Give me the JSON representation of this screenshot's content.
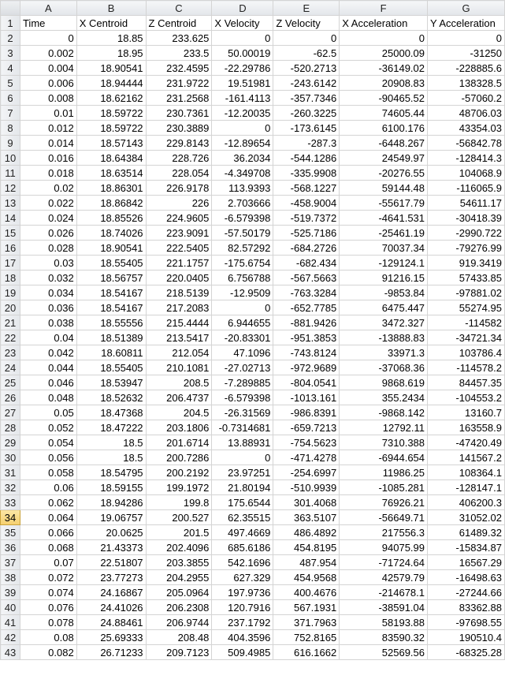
{
  "columns": [
    "A",
    "B",
    "C",
    "D",
    "E",
    "F",
    "G"
  ],
  "active_row": "34",
  "headers": [
    "Time",
    "X Centroid",
    "Z Centroid",
    "X Velocity",
    "Z Velocity",
    "X Acceleration",
    "Y Acceleration"
  ],
  "rows": [
    [
      "2",
      "0",
      "18.85",
      "233.625",
      "0",
      "0",
      "0",
      "0"
    ],
    [
      "3",
      "0.002",
      "18.95",
      "233.5",
      "50.00019",
      "-62.5",
      "25000.09",
      "-31250"
    ],
    [
      "4",
      "0.004",
      "18.90541",
      "232.4595",
      "-22.29786",
      "-520.2713",
      "-36149.02",
      "-228885.6"
    ],
    [
      "5",
      "0.006",
      "18.94444",
      "231.9722",
      "19.51981",
      "-243.6142",
      "20908.83",
      "138328.5"
    ],
    [
      "6",
      "0.008",
      "18.62162",
      "231.2568",
      "-161.4113",
      "-357.7346",
      "-90465.52",
      "-57060.2"
    ],
    [
      "7",
      "0.01",
      "18.59722",
      "230.7361",
      "-12.20035",
      "-260.3225",
      "74605.44",
      "48706.03"
    ],
    [
      "8",
      "0.012",
      "18.59722",
      "230.3889",
      "0",
      "-173.6145",
      "6100.176",
      "43354.03"
    ],
    [
      "9",
      "0.014",
      "18.57143",
      "229.8143",
      "-12.89654",
      "-287.3",
      "-6448.267",
      "-56842.78"
    ],
    [
      "10",
      "0.016",
      "18.64384",
      "228.726",
      "36.2034",
      "-544.1286",
      "24549.97",
      "-128414.3"
    ],
    [
      "11",
      "0.018",
      "18.63514",
      "228.054",
      "-4.349708",
      "-335.9908",
      "-20276.55",
      "104068.9"
    ],
    [
      "12",
      "0.02",
      "18.86301",
      "226.9178",
      "113.9393",
      "-568.1227",
      "59144.48",
      "-116065.9"
    ],
    [
      "13",
      "0.022",
      "18.86842",
      "226",
      "2.703666",
      "-458.9004",
      "-55617.79",
      "54611.17"
    ],
    [
      "14",
      "0.024",
      "18.85526",
      "224.9605",
      "-6.579398",
      "-519.7372",
      "-4641.531",
      "-30418.39"
    ],
    [
      "15",
      "0.026",
      "18.74026",
      "223.9091",
      "-57.50179",
      "-525.7186",
      "-25461.19",
      "-2990.722"
    ],
    [
      "16",
      "0.028",
      "18.90541",
      "222.5405",
      "82.57292",
      "-684.2726",
      "70037.34",
      "-79276.99"
    ],
    [
      "17",
      "0.03",
      "18.55405",
      "221.1757",
      "-175.6754",
      "-682.434",
      "-129124.1",
      "919.3419"
    ],
    [
      "18",
      "0.032",
      "18.56757",
      "220.0405",
      "6.756788",
      "-567.5663",
      "91216.15",
      "57433.85"
    ],
    [
      "19",
      "0.034",
      "18.54167",
      "218.5139",
      "-12.9509",
      "-763.3284",
      "-9853.84",
      "-97881.02"
    ],
    [
      "20",
      "0.036",
      "18.54167",
      "217.2083",
      "0",
      "-652.7785",
      "6475.447",
      "55274.95"
    ],
    [
      "21",
      "0.038",
      "18.55556",
      "215.4444",
      "6.944655",
      "-881.9426",
      "3472.327",
      "-114582"
    ],
    [
      "22",
      "0.04",
      "18.51389",
      "213.5417",
      "-20.83301",
      "-951.3853",
      "-13888.83",
      "-34721.34"
    ],
    [
      "23",
      "0.042",
      "18.60811",
      "212.054",
      "47.1096",
      "-743.8124",
      "33971.3",
      "103786.4"
    ],
    [
      "24",
      "0.044",
      "18.55405",
      "210.1081",
      "-27.02713",
      "-972.9689",
      "-37068.36",
      "-114578.2"
    ],
    [
      "25",
      "0.046",
      "18.53947",
      "208.5",
      "-7.289885",
      "-804.0541",
      "9868.619",
      "84457.35"
    ],
    [
      "26",
      "0.048",
      "18.52632",
      "206.4737",
      "-6.579398",
      "-1013.161",
      "355.2434",
      "-104553.2"
    ],
    [
      "27",
      "0.05",
      "18.47368",
      "204.5",
      "-26.31569",
      "-986.8391",
      "-9868.142",
      "13160.7"
    ],
    [
      "28",
      "0.052",
      "18.47222",
      "203.1806",
      "-0.7314681",
      "-659.7213",
      "12792.11",
      "163558.9"
    ],
    [
      "29",
      "0.054",
      "18.5",
      "201.6714",
      "13.88931",
      "-754.5623",
      "7310.388",
      "-47420.49"
    ],
    [
      "30",
      "0.056",
      "18.5",
      "200.7286",
      "0",
      "-471.4278",
      "-6944.654",
      "141567.2"
    ],
    [
      "31",
      "0.058",
      "18.54795",
      "200.2192",
      "23.97251",
      "-254.6997",
      "11986.25",
      "108364.1"
    ],
    [
      "32",
      "0.06",
      "18.59155",
      "199.1972",
      "21.80194",
      "-510.9939",
      "-1085.281",
      "-128147.1"
    ],
    [
      "33",
      "0.062",
      "18.94286",
      "199.8",
      "175.6544",
      "301.4068",
      "76926.21",
      "406200.3"
    ],
    [
      "34",
      "0.064",
      "19.06757",
      "200.527",
      "62.35515",
      "363.5107",
      "-56649.71",
      "31052.02"
    ],
    [
      "35",
      "0.066",
      "20.0625",
      "201.5",
      "497.4669",
      "486.4892",
      "217556.3",
      "61489.32"
    ],
    [
      "36",
      "0.068",
      "21.43373",
      "202.4096",
      "685.6186",
      "454.8195",
      "94075.99",
      "-15834.87"
    ],
    [
      "37",
      "0.07",
      "22.51807",
      "203.3855",
      "542.1696",
      "487.954",
      "-71724.64",
      "16567.29"
    ],
    [
      "38",
      "0.072",
      "23.77273",
      "204.2955",
      "627.329",
      "454.9568",
      "42579.79",
      "-16498.63"
    ],
    [
      "39",
      "0.074",
      "24.16867",
      "205.0964",
      "197.9736",
      "400.4676",
      "-214678.1",
      "-27244.66"
    ],
    [
      "40",
      "0.076",
      "24.41026",
      "206.2308",
      "120.7916",
      "567.1931",
      "-38591.04",
      "83362.88"
    ],
    [
      "41",
      "0.078",
      "24.88461",
      "206.9744",
      "237.1792",
      "371.7963",
      "58193.88",
      "-97698.55"
    ],
    [
      "42",
      "0.08",
      "25.69333",
      "208.48",
      "404.3596",
      "752.8165",
      "83590.32",
      "190510.4"
    ],
    [
      "43",
      "0.082",
      "26.71233",
      "209.7123",
      "509.4985",
      "616.1662",
      "52569.56",
      "-68325.28"
    ]
  ]
}
